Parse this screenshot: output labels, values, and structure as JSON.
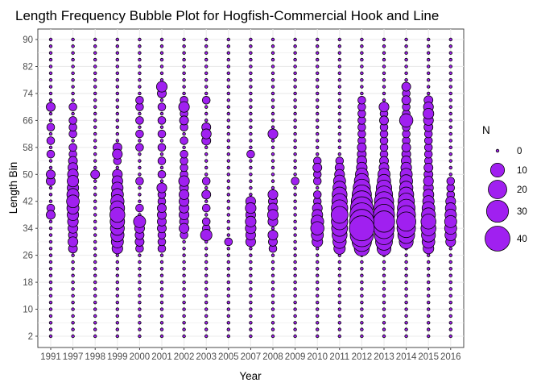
{
  "chart_data": {
    "type": "scatter",
    "title": "Length Frequency Bubble Plot for Hogfish-Commercial Hook and Line",
    "xlabel": "Year",
    "ylabel": "Length Bin",
    "categories": [
      "1991",
      "1997",
      "1998",
      "1999",
      "2000",
      "2001",
      "2002",
      "2003",
      "2005",
      "2007",
      "2008",
      "2009",
      "2010",
      "2011",
      "2012",
      "2013",
      "2014",
      "2015",
      "2016"
    ],
    "y_ticks": [
      2,
      10,
      18,
      26,
      34,
      42,
      50,
      58,
      66,
      74,
      82,
      90
    ],
    "bin_min": 2,
    "bin_max": 90,
    "bin_step": 2,
    "grid": true,
    "legend": {
      "title": "N",
      "position": "right",
      "values": [
        0,
        10,
        20,
        30,
        40
      ]
    },
    "size_max": 40,
    "bubble_fill": "#a020f0",
    "nonzero": {
      "1991": {
        "38": 3,
        "40": 2,
        "48": 3,
        "50": 3,
        "56": 2,
        "60": 2,
        "64": 2,
        "70": 3
      },
      "1997": {
        "28": 3,
        "30": 4,
        "32": 3,
        "34": 4,
        "36": 5,
        "38": 6,
        "40": 7,
        "42": 8,
        "44": 7,
        "46": 6,
        "48": 6,
        "50": 5,
        "52": 4,
        "54": 3,
        "56": 2,
        "58": 2,
        "62": 2,
        "64": 2,
        "66": 2,
        "70": 2
      },
      "1998": {
        "50": 3
      },
      "1999": {
        "28": 5,
        "30": 7,
        "32": 9,
        "34": 10,
        "36": 11,
        "38": 12,
        "40": 11,
        "42": 9,
        "44": 7,
        "46": 6,
        "48": 5,
        "50": 4,
        "54": 2,
        "56": 4,
        "58": 3
      },
      "2000": {
        "28": 2,
        "30": 3,
        "32": 3,
        "34": 4,
        "36": 7,
        "40": 2,
        "48": 2,
        "58": 2,
        "62": 2,
        "66": 2,
        "70": 2,
        "72": 2
      },
      "2001": {
        "28": 2,
        "30": 2,
        "32": 2,
        "34": 3,
        "36": 3,
        "38": 3,
        "40": 3,
        "42": 2,
        "44": 2,
        "46": 4,
        "50": 2,
        "54": 2,
        "58": 2,
        "62": 2,
        "66": 2,
        "70": 2,
        "74": 3,
        "76": 5
      },
      "2002": {
        "32": 2,
        "34": 4,
        "36": 3,
        "38": 4,
        "40": 4,
        "42": 4,
        "44": 4,
        "46": 3,
        "48": 5,
        "50": 2,
        "52": 2,
        "54": 2,
        "56": 2,
        "60": 2,
        "64": 2,
        "66": 3,
        "68": 2,
        "70": 5,
        "72": 2
      },
      "2003": {
        "32": 6,
        "34": 2,
        "36": 2,
        "40": 2,
        "44": 3,
        "48": 2,
        "60": 3,
        "62": 4,
        "64": 3,
        "72": 2
      },
      "2005": {
        "30": 2
      },
      "2007": {
        "30": 4,
        "32": 4,
        "34": 5,
        "36": 5,
        "38": 4,
        "40": 5,
        "42": 4,
        "56": 2
      },
      "2008": {
        "28": 2,
        "30": 3,
        "32": 4,
        "36": 4,
        "38": 5,
        "40": 4,
        "42": 3,
        "44": 4,
        "62": 4
      },
      "2009": {
        "48": 2
      },
      "2010": {
        "30": 5,
        "32": 7,
        "34": 9,
        "36": 8,
        "38": 5,
        "40": 4,
        "42": 2,
        "44": 2,
        "48": 2,
        "50": 2,
        "52": 3,
        "54": 2
      },
      "2011": {
        "28": 6,
        "30": 9,
        "32": 12,
        "34": 14,
        "36": 15,
        "38": 16,
        "40": 15,
        "42": 13,
        "44": 12,
        "46": 9,
        "48": 7,
        "50": 4,
        "52": 3,
        "54": 2
      },
      "2012": {
        "28": 12,
        "30": 22,
        "32": 34,
        "34": 40,
        "36": 38,
        "38": 36,
        "40": 32,
        "42": 27,
        "44": 22,
        "46": 17,
        "48": 12,
        "50": 8,
        "52": 5,
        "54": 4,
        "56": 3,
        "58": 3,
        "60": 2,
        "62": 2,
        "64": 2,
        "66": 2,
        "68": 2,
        "70": 2,
        "72": 2
      },
      "2013": {
        "28": 10,
        "30": 16,
        "32": 22,
        "34": 26,
        "36": 28,
        "38": 27,
        "40": 25,
        "42": 22,
        "44": 17,
        "46": 13,
        "48": 9,
        "50": 7,
        "52": 4,
        "54": 3,
        "56": 2,
        "58": 2,
        "60": 2,
        "62": 2,
        "64": 2,
        "66": 3,
        "68": 2,
        "70": 4
      },
      "2014": {
        "30": 10,
        "32": 16,
        "34": 20,
        "36": 22,
        "38": 20,
        "40": 18,
        "42": 15,
        "44": 12,
        "46": 9,
        "48": 8,
        "50": 7,
        "52": 5,
        "54": 4,
        "56": 3,
        "58": 3,
        "60": 2,
        "62": 2,
        "64": 2,
        "66": 9,
        "68": 2,
        "70": 2,
        "72": 3,
        "74": 2,
        "76": 3
      },
      "2015": {
        "28": 5,
        "30": 8,
        "32": 10,
        "34": 12,
        "36": 12,
        "38": 10,
        "40": 8,
        "42": 6,
        "44": 5,
        "46": 4,
        "48": 4,
        "50": 3,
        "52": 3,
        "54": 2,
        "56": 2,
        "58": 2,
        "60": 2,
        "62": 2,
        "64": 3,
        "66": 4,
        "68": 5,
        "70": 4,
        "72": 3
      },
      "2016": {
        "30": 4,
        "32": 6,
        "34": 7,
        "36": 7,
        "38": 6,
        "40": 5,
        "42": 4,
        "44": 2,
        "46": 2,
        "48": 2
      }
    }
  }
}
